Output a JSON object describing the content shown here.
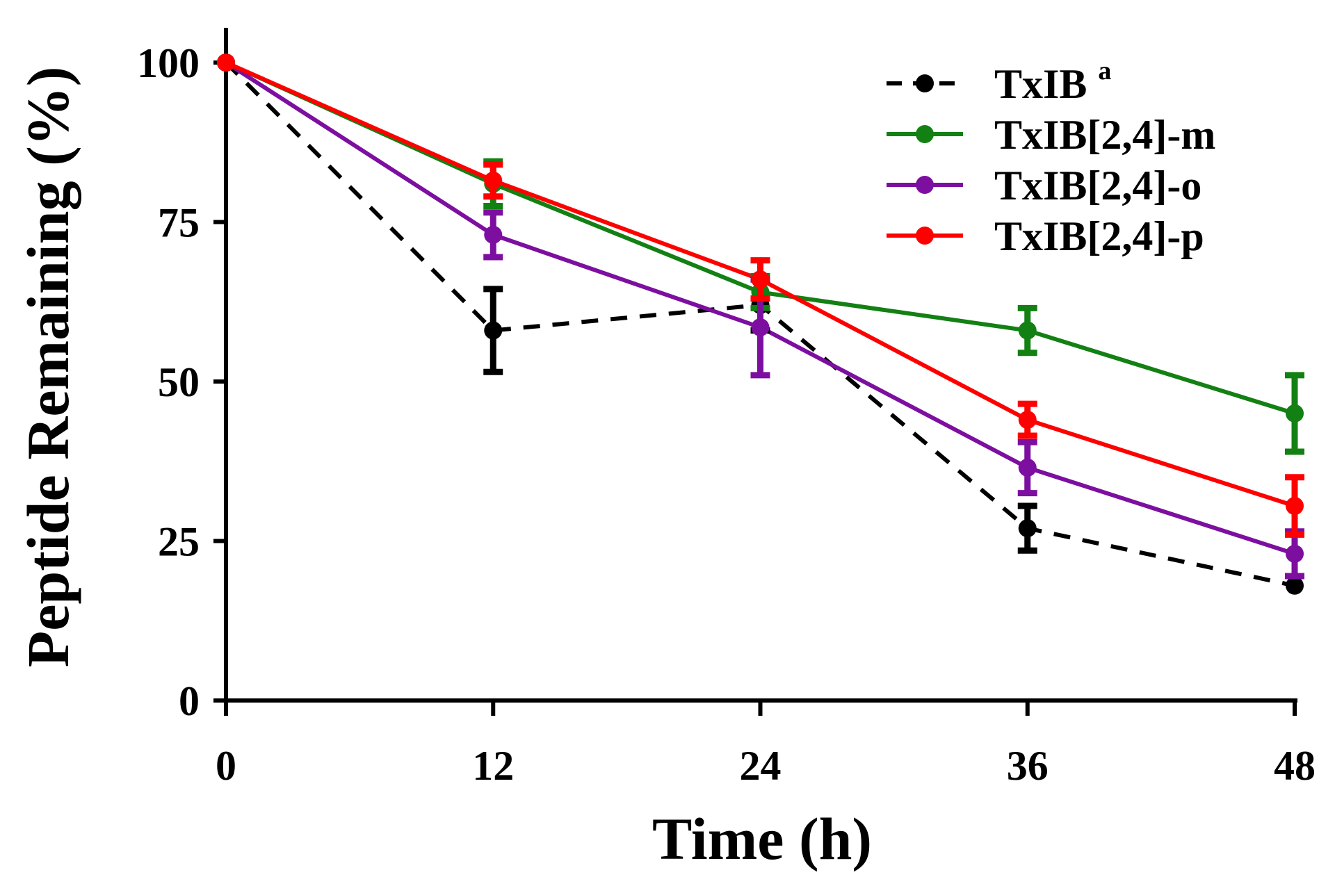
{
  "chart_data": {
    "type": "line",
    "title": "",
    "xlabel": "Time (h)",
    "ylabel": "Peptide Remaining (%)",
    "x": [
      0,
      12,
      24,
      36,
      48
    ],
    "x_ticks": [
      "0",
      "12",
      "24",
      "36",
      "48"
    ],
    "y_ticks": [
      "0",
      "25",
      "50",
      "75",
      "100"
    ],
    "xlim": [
      0,
      48
    ],
    "ylim": [
      0,
      100
    ],
    "grid": false,
    "legend_position": "top-right",
    "series": [
      {
        "name": "TxIB",
        "superscript": "a",
        "color": "#000000",
        "dashed": true,
        "values": [
          100,
          58,
          62,
          27,
          18
        ],
        "errors": [
          0,
          6.5,
          4,
          3.5,
          0
        ]
      },
      {
        "name": "TxIB[2,4]-m",
        "color": "#138013",
        "dashed": false,
        "values": [
          100,
          81,
          64,
          58,
          45
        ],
        "errors": [
          0,
          3.5,
          2.5,
          3.5,
          6
        ]
      },
      {
        "name": "TxIB[2,4]-o",
        "color": "#7d0fa0",
        "dashed": false,
        "values": [
          100,
          73,
          58.5,
          36.5,
          23
        ],
        "errors": [
          0,
          3.5,
          7.5,
          4,
          3.5
        ]
      },
      {
        "name": "TxIB[2,4]-p",
        "color": "#ff0000",
        "dashed": false,
        "values": [
          100,
          81.5,
          66,
          44,
          30.5
        ],
        "errors": [
          0,
          2.5,
          3,
          2.5,
          4.5
        ]
      }
    ]
  }
}
